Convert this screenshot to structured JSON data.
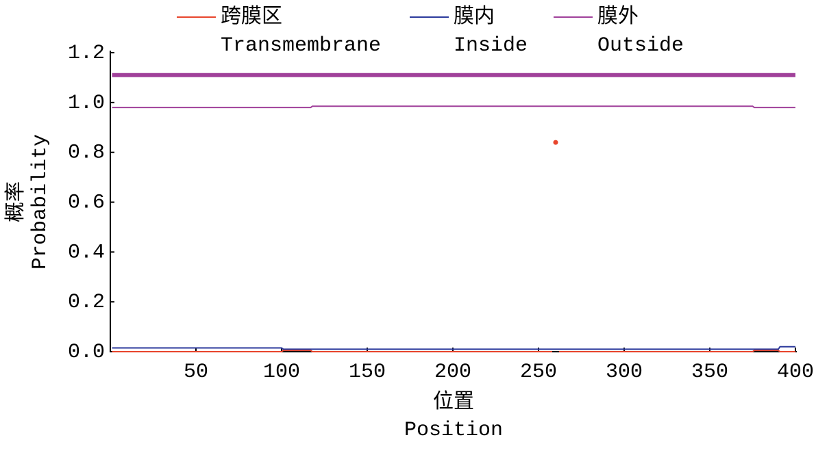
{
  "chart_data": {
    "type": "line",
    "xlabel": [
      "位置",
      "Position"
    ],
    "ylabel": [
      "概率",
      "Probability"
    ],
    "x": [
      1,
      100,
      101,
      117,
      118,
      258,
      259,
      260,
      261,
      262,
      375,
      376,
      390,
      391,
      400
    ],
    "series": [
      {
        "name": [
          "跨膜区",
          "Transmembrane"
        ],
        "color": "#e8452c",
        "values": [
          0,
          0,
          0.005,
          0.005,
          0,
          0,
          null,
          0.84,
          null,
          0,
          0,
          0.005,
          0.005,
          0,
          0
        ]
      },
      {
        "name": [
          "膜内",
          "Inside"
        ],
        "color": "#2b3a9c",
        "values": [
          0.015,
          0.015,
          0.01,
          0.01,
          0.01,
          0.01,
          0.01,
          0.01,
          0.01,
          0.01,
          0.01,
          0.01,
          0.01,
          0.02,
          0.02
        ]
      },
      {
        "name": [
          "膜外",
          "Outside"
        ],
        "color": "#a0409a",
        "values": [
          0.98,
          0.98,
          0.98,
          0.98,
          0.985,
          0.985,
          0.985,
          0.985,
          0.985,
          0.985,
          0.985,
          0.98,
          0.98,
          0.98,
          0.98
        ]
      },
      {
        "color": "#a0409a",
        "width": 6,
        "values": [
          1.11,
          1.11,
          1.11,
          1.11,
          1.11,
          1.11,
          1.11,
          1.11,
          1.11,
          1.11,
          1.11,
          1.11,
          1.11,
          1.11,
          1.11
        ]
      }
    ],
    "xlim": [
      0,
      400
    ],
    "xticks": [
      50,
      100,
      150,
      200,
      250,
      300,
      350,
      400
    ],
    "ylim": [
      0,
      1.2
    ],
    "yticks": [
      {
        "value": 0,
        "label": "0.0"
      },
      0.2,
      0.4,
      0.6,
      0.8,
      {
        "value": 1,
        "label": "1.0"
      },
      1.2
    ],
    "grid": false
  }
}
